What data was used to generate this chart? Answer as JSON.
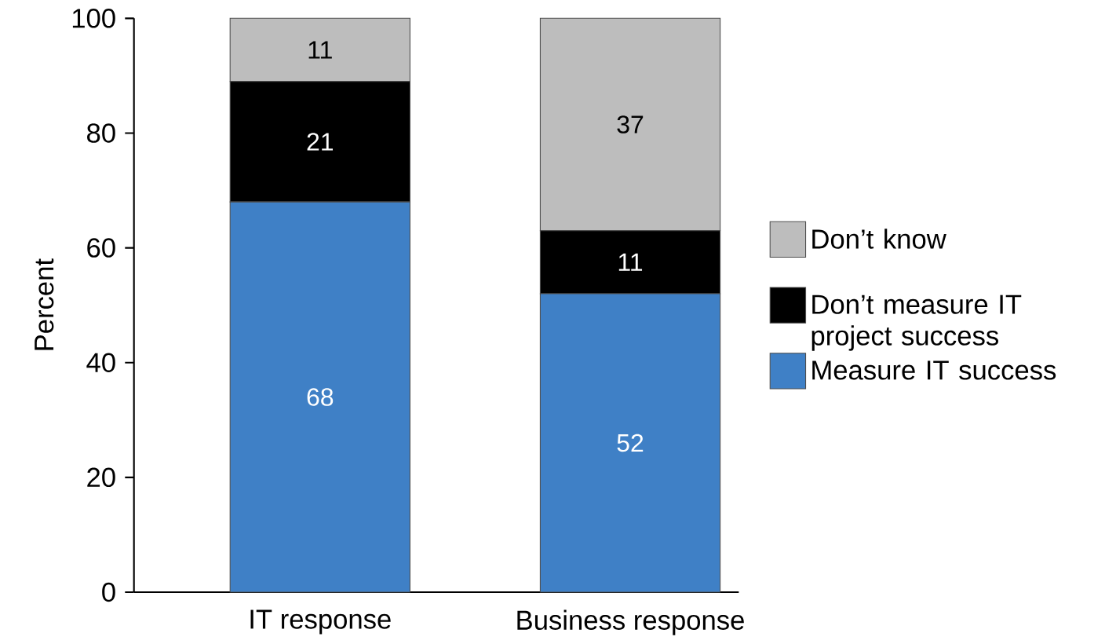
{
  "chart_data": {
    "type": "bar",
    "stacked": true,
    "ylabel": "Percent",
    "categories": [
      "IT response",
      "Business response"
    ],
    "series": [
      {
        "name": "Measure IT success",
        "color": "#3f80c6",
        "values": [
          68,
          52
        ]
      },
      {
        "name": "Don’t measure IT project success",
        "color": "#000000",
        "values": [
          21,
          11
        ]
      },
      {
        "name": "Don’t know",
        "color": "#bdbdbd",
        "values": [
          11,
          37
        ]
      }
    ],
    "ylim": [
      0,
      100
    ],
    "yticks": [
      0,
      20,
      40,
      60,
      80,
      100
    ],
    "data_labels": true,
    "legend": "right",
    "grid": false
  }
}
